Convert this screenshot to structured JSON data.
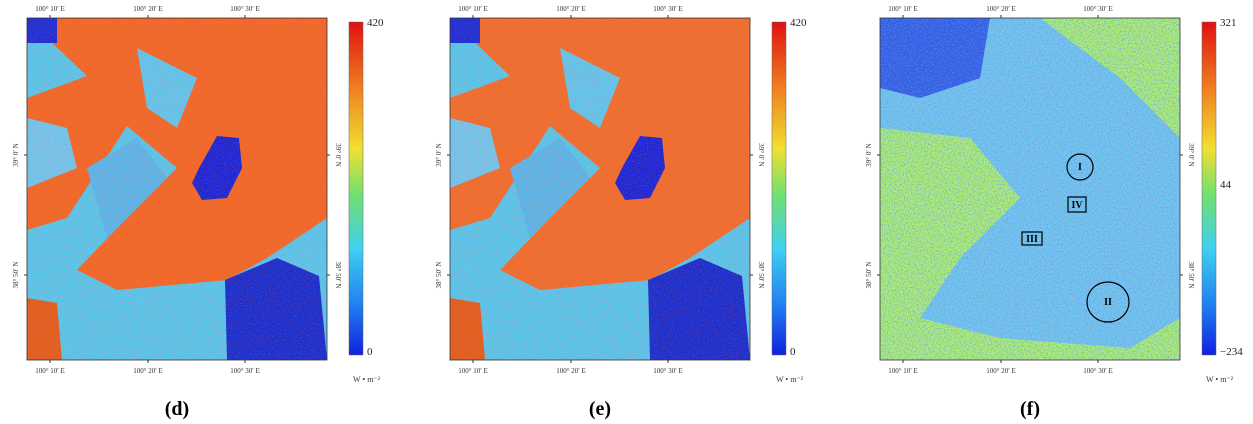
{
  "panels": [
    {
      "kind": "flux",
      "caption": "(d)",
      "top_ticks": [
        "100° 10′ E",
        "100° 20′ E",
        "100° 30′ E"
      ],
      "bottom_ticks": [
        "100° 10′ E",
        "100° 20′ E",
        "100° 30′ E"
      ],
      "left_ticks": [
        "39° 0′ N",
        "38° 50′ N"
      ],
      "right_ticks": [
        "39° 0′ N",
        "38° 50′ N"
      ],
      "colorbar_labels": [
        "420",
        "0"
      ],
      "unit": "W • m⁻²"
    },
    {
      "kind": "flux",
      "caption": "(e)",
      "top_ticks": [
        "100° 10′ E",
        "100° 20′ E",
        "100° 30′ E"
      ],
      "bottom_ticks": [
        "100° 10′ E",
        "100° 20′ E",
        "100° 30′ E"
      ],
      "left_ticks": [
        "39° 0′ N",
        "38° 50′ N"
      ],
      "right_ticks": [
        "39° 0′ N",
        "38° 50′ N"
      ],
      "colorbar_labels": [
        "420",
        "0"
      ],
      "unit": "W • m⁻²"
    },
    {
      "kind": "difference",
      "caption": "(f)",
      "top_ticks": [
        "100° 10′ E",
        "100° 20′ E",
        "100° 30′ E"
      ],
      "bottom_ticks": [
        "100° 10′ E",
        "100° 20′ E",
        "100° 30′ E"
      ],
      "left_ticks": [
        "39° 0′ N",
        "38° 50′ N"
      ],
      "right_ticks": [
        "39° 0′ N",
        "38° 50′ N"
      ],
      "colorbar_labels": [
        "321",
        "44",
        "−234"
      ],
      "unit": "W • m⁻²",
      "annotations": [
        "I",
        "IV",
        "III",
        "II"
      ]
    }
  ]
}
